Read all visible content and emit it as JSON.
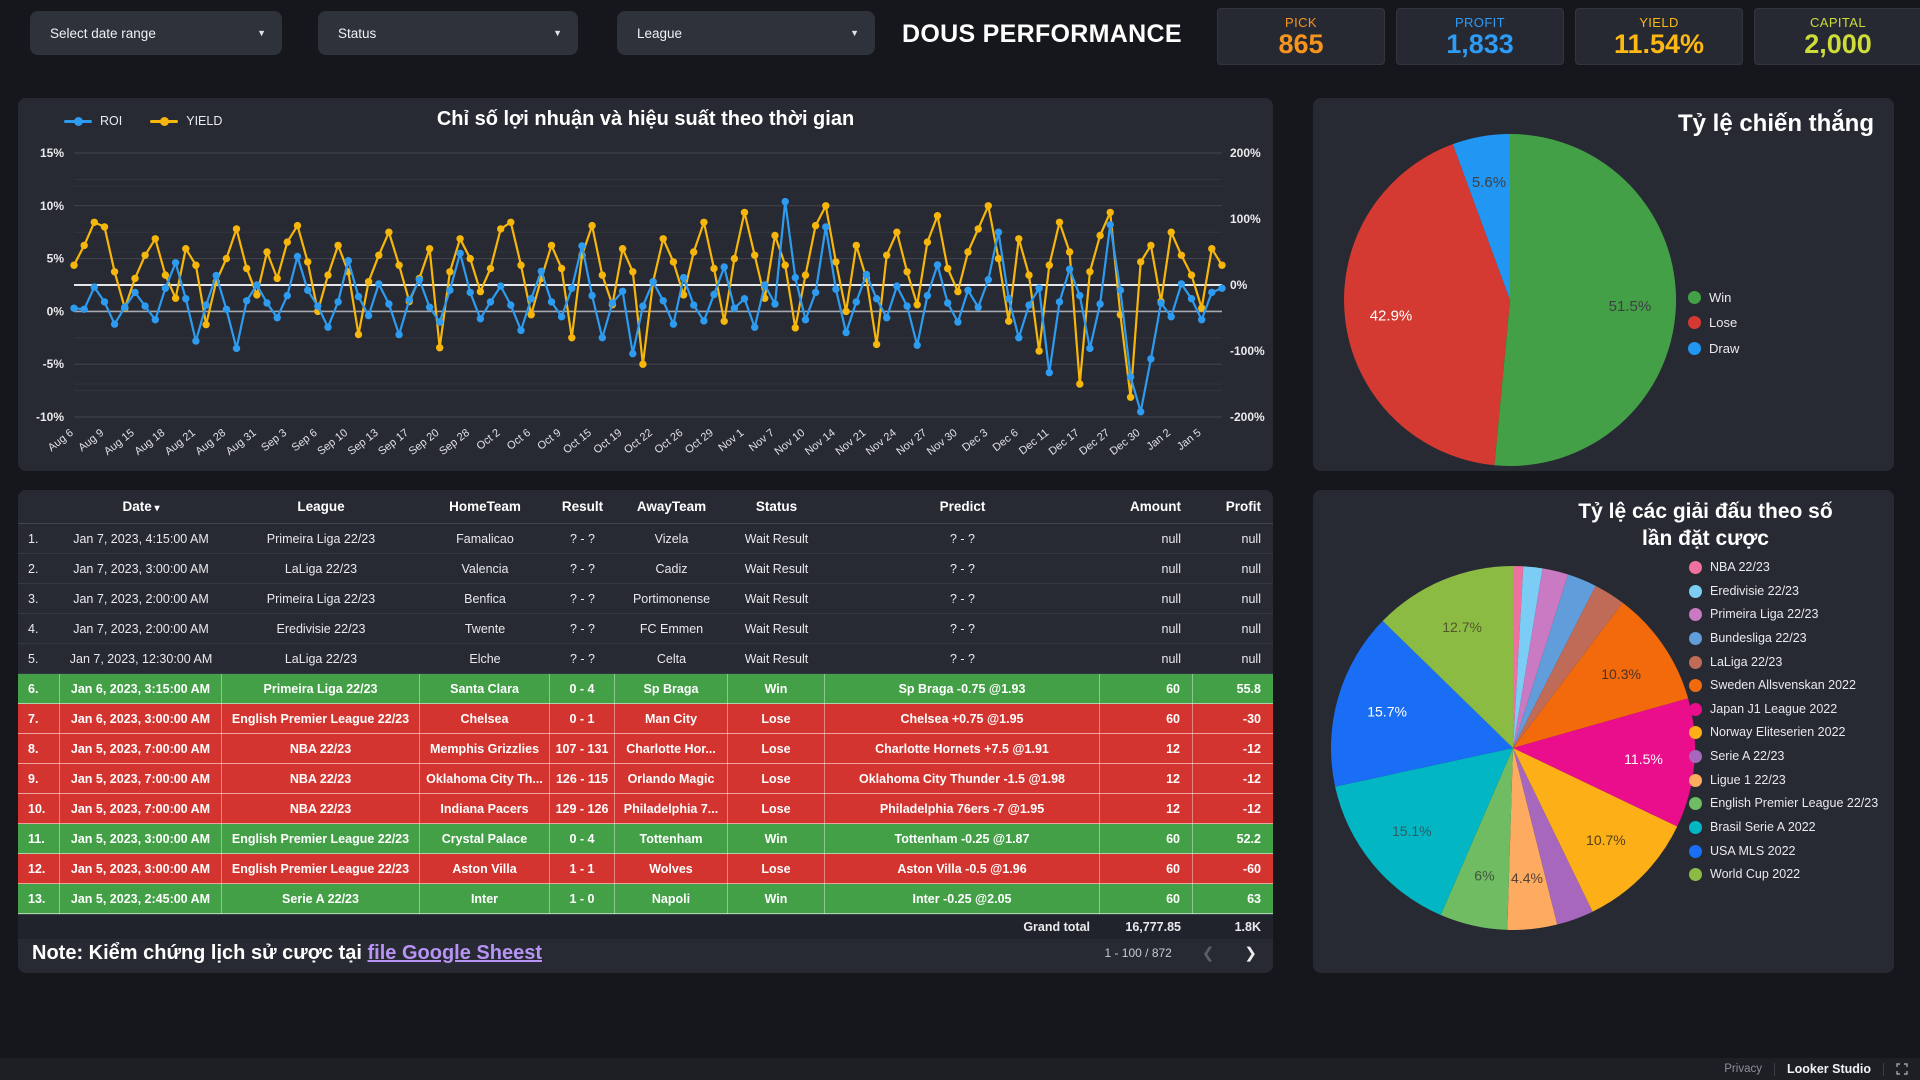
{
  "header": {
    "title": "DOUS PERFORMANCE",
    "filters": [
      {
        "label": "Select date range"
      },
      {
        "label": "Status"
      },
      {
        "label": "League"
      }
    ],
    "kpis": [
      {
        "label": "PICK",
        "value": "865",
        "color": "#f7941e"
      },
      {
        "label": "PROFIT",
        "value": "1,833",
        "color": "#2e9bf5"
      },
      {
        "label": "YIELD",
        "value": "11.54%",
        "color": "#fdb813"
      },
      {
        "label": "CAPITAL",
        "value": "2,000",
        "color": "#cddc39"
      }
    ]
  },
  "chart_data": [
    {
      "type": "line",
      "title": "Chỉ số lợi nhuận và hiệu suất theo thời gian",
      "legend_position": "top-left",
      "grid": true,
      "points_per_tick": 3,
      "x_tick_labels": [
        "Aug 6",
        "Aug 9",
        "Aug 15",
        "Aug 18",
        "Aug 21",
        "Aug 28",
        "Aug 31",
        "Sep 3",
        "Sep 6",
        "Sep 10",
        "Sep 13",
        "Sep 17",
        "Sep 20",
        "Sep 28",
        "Oct 2",
        "Oct 6",
        "Oct 9",
        "Oct 15",
        "Oct 19",
        "Oct 22",
        "Oct 26",
        "Oct 29",
        "Nov 1",
        "Nov 7",
        "Nov 10",
        "Nov 14",
        "Nov 21",
        "Nov 24",
        "Nov 27",
        "Nov 30",
        "Dec 3",
        "Dec 6",
        "Dec 11",
        "Dec 17",
        "Dec 27",
        "Dec 30",
        "Jan 2",
        "Jan 5"
      ],
      "left_axis": {
        "series": "ROI",
        "ylim": [
          -10,
          15
        ],
        "tick_labels": [
          "15%",
          "10%",
          "5%",
          "0%",
          "-5%",
          "-10%"
        ],
        "tick_values": [
          15,
          10,
          5,
          0,
          -5,
          -10
        ]
      },
      "right_axis": {
        "series": "YIELD",
        "ylim": [
          -200,
          200
        ],
        "tick_labels": [
          "200%",
          "100%",
          "0%",
          "-100%",
          "-200%"
        ],
        "tick_values": [
          200,
          100,
          0,
          -100,
          -200
        ]
      },
      "series": [
        {
          "name": "YIELD",
          "axis": "right",
          "color": "#f6b60b",
          "values": [
            30,
            60,
            95,
            88,
            20,
            -35,
            10,
            45,
            70,
            15,
            -20,
            55,
            30,
            -60,
            5,
            40,
            85,
            25,
            -15,
            50,
            10,
            65,
            90,
            35,
            -40,
            15,
            60,
            20,
            -75,
            5,
            45,
            80,
            30,
            -25,
            10,
            55,
            -95,
            20,
            70,
            40,
            -10,
            25,
            85,
            95,
            30,
            -45,
            10,
            60,
            25,
            -80,
            45,
            90,
            15,
            -30,
            55,
            20,
            -120,
            5,
            70,
            35,
            -15,
            50,
            95,
            25,
            -55,
            40,
            110,
            45,
            -20,
            75,
            30,
            -65,
            15,
            90,
            120,
            35,
            -40,
            60,
            10,
            -90,
            45,
            80,
            20,
            -30,
            65,
            105,
            25,
            -10,
            50,
            85,
            120,
            40,
            -55,
            70,
            15,
            -100,
            30,
            95,
            50,
            -150,
            20,
            75,
            110,
            -45,
            -170,
            35,
            60,
            -25,
            80,
            45,
            15,
            -35,
            55,
            30
          ]
        },
        {
          "name": "ROI",
          "axis": "left",
          "color": "#2d9bf0",
          "values": [
            0.3,
            0.2,
            2.3,
            0.9,
            -1.2,
            0.4,
            1.8,
            0.5,
            -0.8,
            2.2,
            4.6,
            1.2,
            -2.8,
            0.6,
            3.4,
            0.2,
            -3.5,
            1.0,
            2.5,
            0.8,
            -0.6,
            1.5,
            5.2,
            2.0,
            0.5,
            -1.5,
            0.9,
            4.8,
            1.4,
            -0.4,
            2.6,
            0.7,
            -2.2,
            1.1,
            3.0,
            0.4,
            -1.0,
            2.0,
            5.5,
            1.8,
            -0.7,
            0.9,
            2.4,
            0.6,
            -1.8,
            1.2,
            3.8,
            0.9,
            -0.5,
            2.2,
            6.2,
            1.5,
            -2.5,
            0.8,
            1.9,
            -4.0,
            0.5,
            2.8,
            1.0,
            -1.2,
            3.2,
            0.6,
            -0.9,
            1.6,
            4.2,
            0.3,
            1.2,
            -1.5,
            2.5,
            0.7,
            10.4,
            3.2,
            -0.8,
            1.8,
            8.0,
            2.1,
            -2.0,
            0.9,
            3.5,
            1.2,
            -0.6,
            2.4,
            0.5,
            -3.2,
            1.5,
            4.4,
            0.8,
            -1.0,
            2.0,
            0.4,
            3.0,
            7.5,
            1.2,
            -2.5,
            0.6,
            2.2,
            -5.8,
            0.9,
            4.0,
            1.5,
            -3.5,
            0.7,
            8.2,
            2.0,
            -6.2,
            -9.5,
            -4.5,
            0.8,
            -0.5,
            2.6,
            1.2,
            -0.8,
            1.8,
            2.2
          ]
        }
      ]
    },
    {
      "type": "pie",
      "title": "Tỷ lệ chiến thắng",
      "legend_position": "right",
      "slices": [
        {
          "label": "Win",
          "value": 51.5,
          "display": "51.5%",
          "color": "#43a047",
          "text_color": "#3d4043"
        },
        {
          "label": "Lose",
          "value": 42.9,
          "display": "42.9%",
          "color": "#d43a31",
          "text_color": "#ffffff"
        },
        {
          "label": "Draw",
          "value": 5.6,
          "display": "5.6%",
          "color": "#2196f3",
          "text_color": "#3d4043"
        }
      ]
    },
    {
      "type": "pie",
      "title": "Tỷ lệ các giải đấu theo số lần đặt cược",
      "title_lines": [
        "Tỷ lệ các giải đấu theo số",
        "lần đặt cược"
      ],
      "legend_position": "right",
      "slices": [
        {
          "label": "NBA 22/23",
          "value": 0.9,
          "display": "",
          "color": "#ef719f",
          "text_color": "#3d4043"
        },
        {
          "label": "Eredivisie 22/23",
          "value": 1.7,
          "display": "",
          "color": "#7bcdf5",
          "text_color": "#3d4043"
        },
        {
          "label": "Primeira Liga 22/23",
          "value": 2.3,
          "display": "",
          "color": "#ca7ac2",
          "text_color": "#3d4043"
        },
        {
          "label": "Bundesliga 22/23",
          "value": 2.6,
          "display": "",
          "color": "#609dda",
          "text_color": "#3d4043"
        },
        {
          "label": "LaLiga 22/23",
          "value": 2.8,
          "display": "",
          "color": "#c06a58",
          "text_color": "#3d4043"
        },
        {
          "label": "Sweden Allsvenskan 2022",
          "value": 10.3,
          "display": "10.3%",
          "color": "#f26a0c",
          "text_color": "#4a3325"
        },
        {
          "label": "Japan J1 League 2022",
          "value": 11.5,
          "display": "11.5%",
          "color": "#eb0e8c",
          "text_color": "#ffffff"
        },
        {
          "label": "Norway Eliteserien 2022",
          "value": 10.7,
          "display": "10.7%",
          "color": "#fcaf17",
          "text_color": "#554018"
        },
        {
          "label": "Serie A 22/23",
          "value": 3.3,
          "display": "",
          "color": "#a667bd",
          "text_color": "#3d4043"
        },
        {
          "label": "Ligue 1 22/23",
          "value": 4.4,
          "display": "4.4%",
          "color": "#fcab60",
          "text_color": "#564134"
        },
        {
          "label": "English Premier League 22/23",
          "value": 6.0,
          "display": "6%",
          "color": "#6fbc62",
          "text_color": "#42553f"
        },
        {
          "label": "Brasil Serie A 2022",
          "value": 15.1,
          "display": "15.1%",
          "color": "#02b7c3",
          "text_color": "#2f5a60"
        },
        {
          "label": "USA MLS 2022",
          "value": 15.7,
          "display": "15.7%",
          "color": "#1a6ef5",
          "text_color": "#ffffff"
        },
        {
          "label": "World Cup 2022",
          "value": 12.7,
          "display": "12.7%",
          "color": "#8cbb43",
          "text_color": "#50572c"
        }
      ]
    }
  ],
  "table": {
    "headers": [
      "Date",
      "League",
      "HomeTeam",
      "Result",
      "AwayTeam",
      "Status",
      "Predict",
      "Amount",
      "Profit"
    ],
    "sort_column": "Date",
    "row_status_colors": {
      "Win": "#43a047",
      "Lose": "#d3342f"
    },
    "rows": [
      {
        "num": "1.",
        "date": "Jan 7, 2023, 4:15:00 AM",
        "league": "Primeira Liga 22/23",
        "home": "Famalicao",
        "result": "? - ?",
        "away": "Vizela",
        "status": "Wait Result",
        "predict": "? - ?",
        "amount": "null",
        "profit": "null"
      },
      {
        "num": "2.",
        "date": "Jan 7, 2023, 3:00:00 AM",
        "league": "LaLiga 22/23",
        "home": "Valencia",
        "result": "? - ?",
        "away": "Cadiz",
        "status": "Wait Result",
        "predict": "? - ?",
        "amount": "null",
        "profit": "null"
      },
      {
        "num": "3.",
        "date": "Jan 7, 2023, 2:00:00 AM",
        "league": "Primeira Liga 22/23",
        "home": "Benfica",
        "result": "? - ?",
        "away": "Portimonense",
        "status": "Wait Result",
        "predict": "? - ?",
        "amount": "null",
        "profit": "null"
      },
      {
        "num": "4.",
        "date": "Jan 7, 2023, 2:00:00 AM",
        "league": "Eredivisie 22/23",
        "home": "Twente",
        "result": "? - ?",
        "away": "FC Emmen",
        "status": "Wait Result",
        "predict": "? - ?",
        "amount": "null",
        "profit": "null"
      },
      {
        "num": "5.",
        "date": "Jan 7, 2023, 12:30:00 AM",
        "league": "LaLiga 22/23",
        "home": "Elche",
        "result": "? - ?",
        "away": "Celta",
        "status": "Wait Result",
        "predict": "? - ?",
        "amount": "null",
        "profit": "null"
      },
      {
        "num": "6.",
        "date": "Jan 6, 2023, 3:15:00 AM",
        "league": "Primeira Liga 22/23",
        "home": "Santa Clara",
        "result": "0 - 4",
        "away": "Sp Braga",
        "status": "Win",
        "predict": "Sp Braga -0.75 @1.93",
        "amount": "60",
        "profit": "55.8"
      },
      {
        "num": "7.",
        "date": "Jan 6, 2023, 3:00:00 AM",
        "league": "English Premier League 22/23",
        "home": "Chelsea",
        "result": "0 - 1",
        "away": "Man City",
        "status": "Lose",
        "predict": "Chelsea +0.75 @1.95",
        "amount": "60",
        "profit": "-30"
      },
      {
        "num": "8.",
        "date": "Jan 5, 2023, 7:00:00 AM",
        "league": "NBA 22/23",
        "home": "Memphis Grizzlies",
        "result": "107 - 131",
        "away": "Charlotte Hor...",
        "status": "Lose",
        "predict": "Charlotte Hornets +7.5 @1.91",
        "amount": "12",
        "profit": "-12"
      },
      {
        "num": "9.",
        "date": "Jan 5, 2023, 7:00:00 AM",
        "league": "NBA 22/23",
        "home": "Oklahoma City Th...",
        "result": "126 - 115",
        "away": "Orlando Magic",
        "status": "Lose",
        "predict": "Oklahoma City Thunder -1.5 @1.98",
        "amount": "12",
        "profit": "-12"
      },
      {
        "num": "10.",
        "date": "Jan 5, 2023, 7:00:00 AM",
        "league": "NBA 22/23",
        "home": "Indiana Pacers",
        "result": "129 - 126",
        "away": "Philadelphia 7...",
        "status": "Lose",
        "predict": "Philadelphia 76ers -7 @1.95",
        "amount": "12",
        "profit": "-12"
      },
      {
        "num": "11.",
        "date": "Jan 5, 2023, 3:00:00 AM",
        "league": "English Premier League 22/23",
        "home": "Crystal Palace",
        "result": "0 - 4",
        "away": "Tottenham",
        "status": "Win",
        "predict": "Tottenham -0.25 @1.87",
        "amount": "60",
        "profit": "52.2"
      },
      {
        "num": "12.",
        "date": "Jan 5, 2023, 3:00:00 AM",
        "league": "English Premier League 22/23",
        "home": "Aston Villa",
        "result": "1 - 1",
        "away": "Wolves",
        "status": "Lose",
        "predict": "Aston Villa -0.5 @1.96",
        "amount": "60",
        "profit": "-60"
      },
      {
        "num": "13.",
        "date": "Jan 5, 2023, 2:45:00 AM",
        "league": "Serie A 22/23",
        "home": "Inter",
        "result": "1 - 0",
        "away": "Napoli",
        "status": "Win",
        "predict": "Inter -0.25 @2.05",
        "amount": "60",
        "profit": "63"
      }
    ],
    "grand_total": {
      "label": "Grand total",
      "amount": "16,777.85",
      "profit": "1.8K"
    }
  },
  "note": {
    "prefix": "Note: Kiểm chứng lịch sử cược tại ",
    "link": "file Google Sheest"
  },
  "pagination": {
    "range": "1 - 100 / 872",
    "prev": "❮",
    "next": "❯"
  },
  "footer": {
    "privacy": "Privacy",
    "brand": "Looker Studio"
  }
}
